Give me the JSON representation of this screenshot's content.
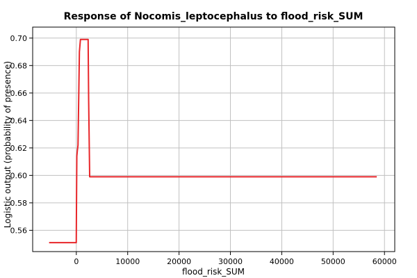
{
  "chart_data": {
    "type": "line",
    "title": "Response of Nocomis_leptocephalus to flood_risk_SUM",
    "xlabel": "flood_risk_SUM",
    "ylabel": "Logistic output (probability of presence)",
    "xlim": [
      -8500,
      62000
    ],
    "ylim": [
      0.5445,
      0.708
    ],
    "grid": true,
    "x_ticks": [
      0,
      10000,
      20000,
      30000,
      40000,
      50000,
      60000
    ],
    "x_tick_labels": [
      "0",
      "10000",
      "20000",
      "30000",
      "40000",
      "50000",
      "60000"
    ],
    "y_ticks": [
      0.56,
      0.58,
      0.6,
      0.62,
      0.64,
      0.66,
      0.68,
      0.7
    ],
    "y_tick_labels": [
      "0.56",
      "0.58",
      "0.60",
      "0.62",
      "0.64",
      "0.66",
      "0.68",
      "0.70"
    ],
    "series": [
      {
        "color": "#e8262a",
        "x": [
          -5300,
          -10,
          20,
          100,
          200,
          330,
          600,
          800,
          2300,
          2400,
          2600,
          58500
        ],
        "y": [
          0.551,
          0.551,
          0.571,
          0.614,
          0.618,
          0.622,
          0.69,
          0.699,
          0.699,
          0.655,
          0.599,
          0.599
        ]
      }
    ]
  }
}
